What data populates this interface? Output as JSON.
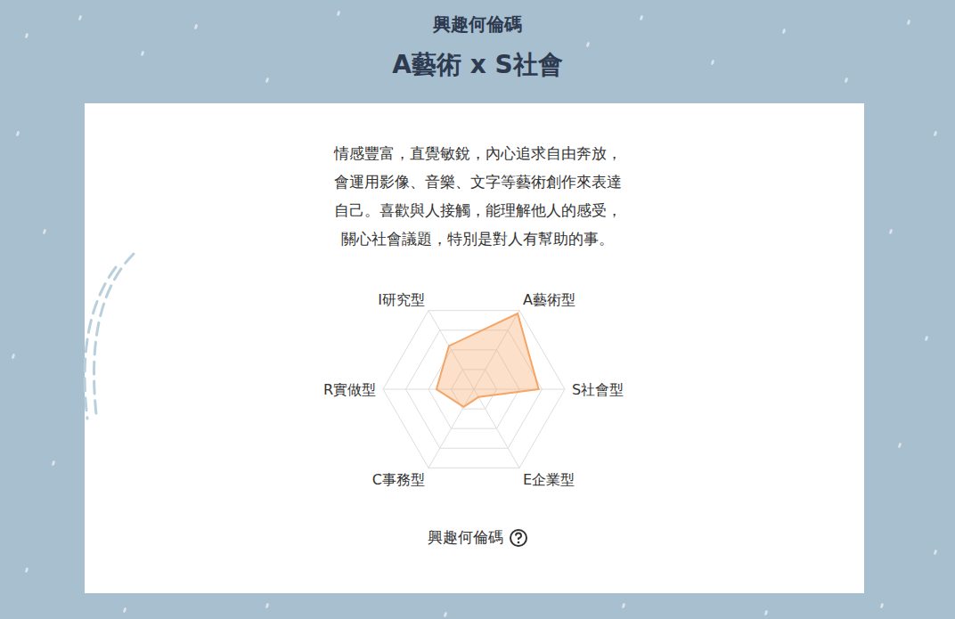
{
  "header": {
    "title": "興趣何倫碼",
    "subtitle": "A藝術 x S社會"
  },
  "description": [
    "情感豐富，直覺敏銳，內心追求自由奔放，",
    "會運用影像、音樂、文字等藝術創作來表達",
    "自己。喜歡與人接觸，能理解他人的感受，",
    "關心社會議題，特別是對人有幫助的事。"
  ],
  "chart_data": {
    "type": "radar",
    "categories": [
      "S社會型",
      "E企業型",
      "C事務型",
      "R實做型",
      "I研究型",
      "A藝術型"
    ],
    "values": [
      2.85,
      0.4,
      0.9,
      1.65,
      2.2,
      3.85
    ],
    "color": "#f5a565",
    "ylim": [
      0,
      4
    ],
    "yticks": [
      0,
      1,
      2,
      3,
      4
    ],
    "grid": true,
    "tick_labels": "x"
  },
  "footer": {
    "label": "興趣何倫碼"
  }
}
